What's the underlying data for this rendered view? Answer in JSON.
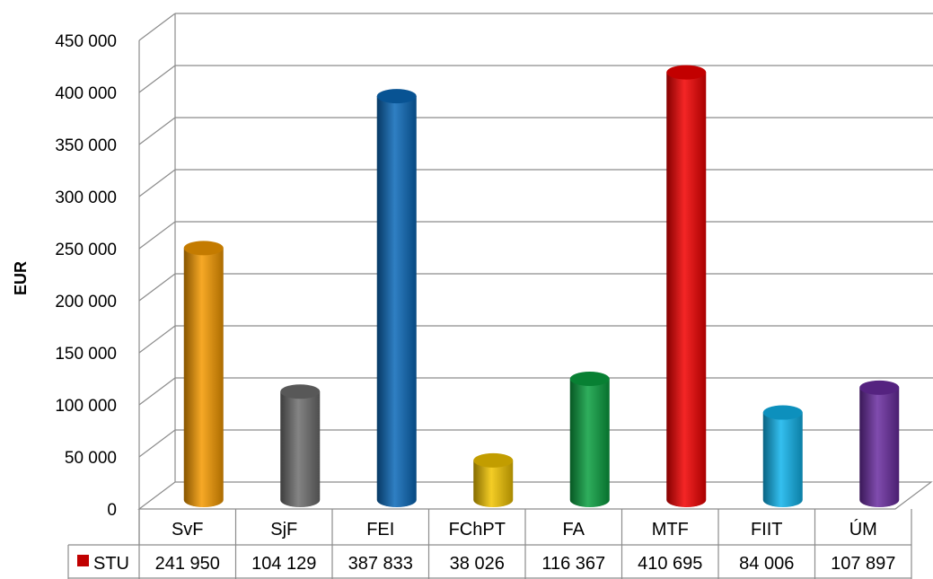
{
  "chart_data": {
    "type": "bar",
    "style": "3d-cylinder",
    "categories": [
      "SvF",
      "SjF",
      "FEI",
      "FChPT",
      "FA",
      "MTF",
      "FIIT",
      "ÚM"
    ],
    "series": [
      {
        "name": "STU",
        "color": "#c00000",
        "values": [
          241950,
          104129,
          387833,
          38026,
          116367,
          410695,
          84006,
          107897
        ],
        "value_labels": [
          "241 950",
          "104 129",
          "387 833",
          "38 026",
          "116 367",
          "410 695",
          "84 006",
          "107 897"
        ]
      }
    ],
    "bar_colors": [
      "#f59a00",
      "#6e6e6e",
      "#0a68b8",
      "#f2c400",
      "#0aa040",
      "#f20000",
      "#10b4ec",
      "#6a2ca0"
    ],
    "title": "",
    "xlabel": "",
    "ylabel": "EUR",
    "ylim": [
      0,
      450000
    ],
    "yticks": [
      0,
      50000,
      100000,
      150000,
      200000,
      250000,
      300000,
      350000,
      400000,
      450000
    ],
    "ytick_labels": [
      "0",
      "50 000",
      "100 000",
      "150 000",
      "200 000",
      "250 000",
      "300 000",
      "350 000",
      "400 000",
      "450 000"
    ],
    "grid": true,
    "legend": "data-table"
  }
}
